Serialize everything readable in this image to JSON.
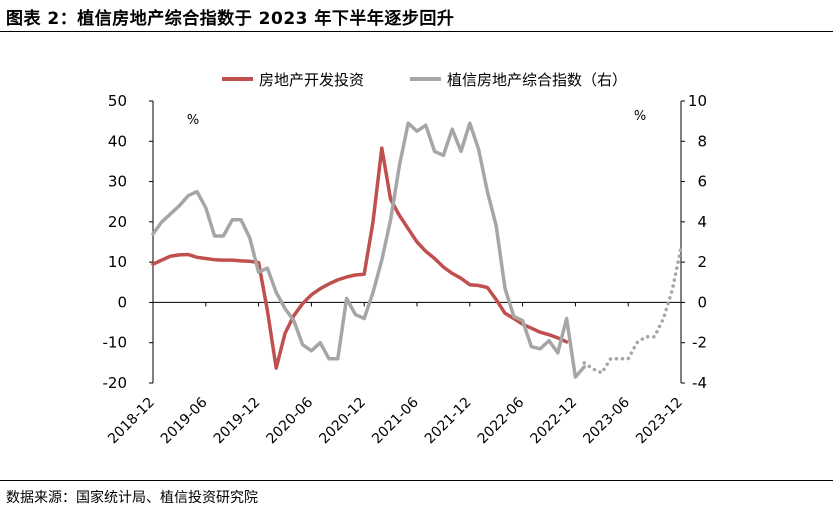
{
  "title": "图表 2：植信房地产综合指数于 2023 年下半年逐步回升",
  "source": "数据来源：国家统计局、植信投资研究院",
  "colors": {
    "red": "#c0504d",
    "gray": "#a6a6a6",
    "axis": "#000000"
  },
  "chart_data": {
    "type": "line",
    "x_tick_labels": [
      "2018-12",
      "2019-06",
      "2019-12",
      "2020-06",
      "2020-12",
      "2021-06",
      "2021-12",
      "2022-06",
      "2022-12",
      "2023-06",
      "2023-12"
    ],
    "left_axis": {
      "ticks": [
        50,
        40,
        30,
        20,
        10,
        0,
        -10,
        -20
      ],
      "unit": "%",
      "ylim": [
        -20,
        50
      ]
    },
    "right_axis": {
      "ticks": [
        10,
        8,
        6,
        4,
        2,
        0,
        -2,
        -4
      ],
      "unit": "%",
      "ylim": [
        -4,
        10
      ]
    },
    "legend": {
      "position": "top",
      "entries": [
        "房地产开发投资",
        "植信房地产综合指数（右）"
      ]
    },
    "series": [
      {
        "name": "房地产开发投资",
        "axis": "left",
        "style": "solid",
        "color": "#c0504d",
        "points": [
          [
            "2018-12",
            9.5
          ],
          [
            "2019-01",
            10.5
          ],
          [
            "2019-02",
            11.5
          ],
          [
            "2019-03",
            11.8
          ],
          [
            "2019-04",
            11.9
          ],
          [
            "2019-05",
            11.2
          ],
          [
            "2019-06",
            10.9
          ],
          [
            "2019-07",
            10.6
          ],
          [
            "2019-08",
            10.5
          ],
          [
            "2019-09",
            10.5
          ],
          [
            "2019-10",
            10.3
          ],
          [
            "2019-11",
            10.2
          ],
          [
            "2019-12",
            9.9
          ],
          [
            "2020-01",
            -2
          ],
          [
            "2020-02",
            -16.3
          ],
          [
            "2020-03",
            -7.7
          ],
          [
            "2020-04",
            -3.3
          ],
          [
            "2020-05",
            -0.3
          ],
          [
            "2020-06",
            1.9
          ],
          [
            "2020-07",
            3.4
          ],
          [
            "2020-08",
            4.6
          ],
          [
            "2020-09",
            5.6
          ],
          [
            "2020-10",
            6.3
          ],
          [
            "2020-11",
            6.8
          ],
          [
            "2020-12",
            7.0
          ],
          [
            "2021-01",
            20
          ],
          [
            "2021-02",
            38.3
          ],
          [
            "2021-03",
            25.6
          ],
          [
            "2021-04",
            21.6
          ],
          [
            "2021-05",
            18.3
          ],
          [
            "2021-06",
            15.0
          ],
          [
            "2021-07",
            12.7
          ],
          [
            "2021-08",
            10.9
          ],
          [
            "2021-09",
            8.8
          ],
          [
            "2021-10",
            7.2
          ],
          [
            "2021-11",
            6.0
          ],
          [
            "2021-12",
            4.4
          ],
          [
            "2022-01",
            4.2
          ],
          [
            "2022-02",
            3.7
          ],
          [
            "2022-03",
            0.7
          ],
          [
            "2022-04",
            -2.7
          ],
          [
            "2022-05",
            -4.0
          ],
          [
            "2022-06",
            -5.4
          ],
          [
            "2022-07",
            -6.4
          ],
          [
            "2022-08",
            -7.4
          ],
          [
            "2022-09",
            -8.0
          ],
          [
            "2022-10",
            -8.8
          ],
          [
            "2022-11",
            -9.8
          ]
        ]
      },
      {
        "name": "植信房地产综合指数（右）",
        "axis": "right",
        "style": "solid",
        "color": "#a6a6a6",
        "points": [
          [
            "2018-12",
            3.4
          ],
          [
            "2019-01",
            4.0
          ],
          [
            "2019-02",
            4.4
          ],
          [
            "2019-03",
            4.8
          ],
          [
            "2019-04",
            5.3
          ],
          [
            "2019-05",
            5.5
          ],
          [
            "2019-06",
            4.7
          ],
          [
            "2019-07",
            3.3
          ],
          [
            "2019-08",
            3.3
          ],
          [
            "2019-09",
            4.1
          ],
          [
            "2019-10",
            4.1
          ],
          [
            "2019-11",
            3.2
          ],
          [
            "2019-12",
            1.5
          ],
          [
            "2020-01",
            1.7
          ],
          [
            "2020-02",
            0.5
          ],
          [
            "2020-03",
            -0.3
          ],
          [
            "2020-04",
            -0.9
          ],
          [
            "2020-05",
            -2.1
          ],
          [
            "2020-06",
            -2.4
          ],
          [
            "2020-07",
            -2.0
          ],
          [
            "2020-08",
            -2.8
          ],
          [
            "2020-09",
            -2.8
          ],
          [
            "2020-10",
            0.2
          ],
          [
            "2020-11",
            -0.6
          ],
          [
            "2020-12",
            -0.8
          ],
          [
            "2021-01",
            0.5
          ],
          [
            "2021-02",
            2.1
          ],
          [
            "2021-03",
            4.1
          ],
          [
            "2021-04",
            6.8
          ],
          [
            "2021-05",
            8.9
          ],
          [
            "2021-06",
            8.5
          ],
          [
            "2021-07",
            8.8
          ],
          [
            "2021-08",
            7.5
          ],
          [
            "2021-09",
            7.3
          ],
          [
            "2021-10",
            8.6
          ],
          [
            "2021-11",
            7.5
          ],
          [
            "2021-12",
            8.9
          ],
          [
            "2022-01",
            7.6
          ],
          [
            "2022-02",
            5.5
          ],
          [
            "2022-03",
            3.8
          ],
          [
            "2022-04",
            0.7
          ],
          [
            "2022-05",
            -0.7
          ],
          [
            "2022-06",
            -0.9
          ],
          [
            "2022-07",
            -2.2
          ],
          [
            "2022-08",
            -2.3
          ],
          [
            "2022-09",
            -1.9
          ],
          [
            "2022-10",
            -2.5
          ],
          [
            "2022-11",
            -0.8
          ],
          [
            "2022-12",
            -3.7
          ],
          [
            "2023-01",
            -3.2
          ]
        ]
      },
      {
        "name": "植信房地产综合指数（右）",
        "axis": "right",
        "style": "dotted",
        "color": "#a6a6a6",
        "points": [
          [
            "2023-01",
            -3.0
          ],
          [
            "2023-02",
            -3.3
          ],
          [
            "2023-03",
            -3.5
          ],
          [
            "2023-04",
            -2.8
          ],
          [
            "2023-05",
            -2.8
          ],
          [
            "2023-06",
            -2.8
          ],
          [
            "2023-07",
            -2.0
          ],
          [
            "2023-08",
            -1.7
          ],
          [
            "2023-09",
            -1.7
          ],
          [
            "2023-10",
            -0.8
          ],
          [
            "2023-11",
            0.6
          ],
          [
            "2023-12",
            2.7
          ]
        ]
      }
    ]
  }
}
